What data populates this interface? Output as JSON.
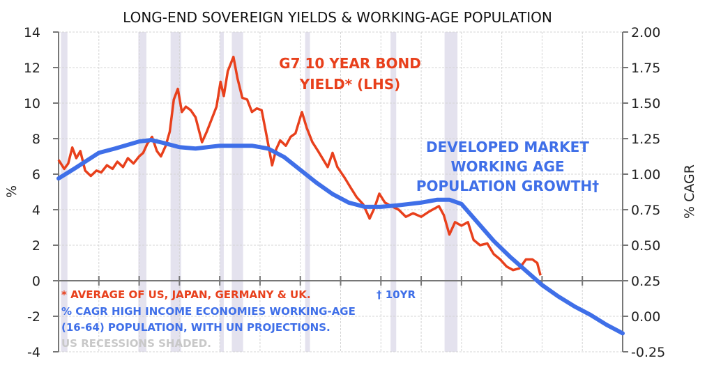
{
  "chart_data": {
    "type": "line",
    "title": "LONG-END SOVEREIGN YIELDS & WORKING-AGE POPULATION",
    "ylabel": "%",
    "y2label": "% CAGR",
    "xlim": [
      1960,
      2030
    ],
    "ylim": [
      -4,
      14
    ],
    "y2lim": [
      -0.25,
      2.0
    ],
    "yticks": [
      "14",
      "12",
      "10",
      "8",
      "6",
      "4",
      "2",
      "0",
      "-2",
      "-4"
    ],
    "y2ticks": [
      "2.00",
      "1.75",
      "1.50",
      "1.25",
      "1.00",
      "0.75",
      "0.50",
      "0.25",
      "0.00",
      "-0.25"
    ],
    "grid": true,
    "colors": {
      "yield": "#e8401c",
      "population": "#3f6fe8",
      "recession": "#e4e2ee",
      "note_gray": "#c8c8c8"
    },
    "recessions": [
      [
        1960.3,
        1961.1
      ],
      [
        1969.9,
        1970.9
      ],
      [
        1973.9,
        1975.2
      ],
      [
        1980.0,
        1980.5
      ],
      [
        1981.5,
        1982.9
      ],
      [
        1990.6,
        1991.2
      ],
      [
        2001.2,
        2001.9
      ],
      [
        2007.9,
        2009.5
      ]
    ],
    "series": [
      {
        "name": "G7 10 YEAR BOND YIELD* (LHS)",
        "axis": "left",
        "x": [
          1960,
          1960.7,
          1961.2,
          1961.7,
          1962.2,
          1962.7,
          1963.3,
          1964,
          1964.7,
          1965.3,
          1966,
          1966.7,
          1967.3,
          1968,
          1968.6,
          1969.3,
          1970,
          1970.5,
          1971,
          1971.6,
          1972.2,
          1972.7,
          1973.3,
          1973.8,
          1974.3,
          1974.8,
          1975.3,
          1975.8,
          1976.4,
          1977,
          1977.8,
          1978.4,
          1979,
          1979.6,
          1980.1,
          1980.5,
          1981,
          1981.7,
          1982.2,
          1982.8,
          1983.4,
          1984,
          1984.6,
          1985.2,
          1985.8,
          1986.5,
          1987,
          1987.5,
          1988.2,
          1988.8,
          1989.4,
          1990.2,
          1990.8,
          1991.5,
          1992.2,
          1993.4,
          1994,
          1994.6,
          1995.5,
          1996.3,
          1997,
          1997.8,
          1998.6,
          1999.2,
          1999.8,
          2000.5,
          2001.3,
          2002.2,
          2003.1,
          2004,
          2005,
          2006,
          2007.2,
          2007.8,
          2008.5,
          2009.2,
          2010,
          2010.8,
          2011.5,
          2012.3,
          2013.2,
          2014,
          2014.8,
          2015.6,
          2016.4,
          2017.2,
          2018,
          2018.8,
          2019.4,
          2019.8
        ],
        "y": [
          6.8,
          6.3,
          6.6,
          7.5,
          6.9,
          7.3,
          6.2,
          5.9,
          6.2,
          6.1,
          6.5,
          6.3,
          6.7,
          6.4,
          6.9,
          6.6,
          7.0,
          7.2,
          7.7,
          8.1,
          7.3,
          7.0,
          7.6,
          8.4,
          10.2,
          10.8,
          9.5,
          9.8,
          9.6,
          9.2,
          7.8,
          8.4,
          9.1,
          9.8,
          11.2,
          10.4,
          11.8,
          12.6,
          11.4,
          10.3,
          10.2,
          9.5,
          9.7,
          9.6,
          8.2,
          6.5,
          7.4,
          7.9,
          7.6,
          8.1,
          8.3,
          9.5,
          8.6,
          7.8,
          7.3,
          6.4,
          7.2,
          6.4,
          5.8,
          5.2,
          4.7,
          4.3,
          3.5,
          4.1,
          4.9,
          4.4,
          4.2,
          4.0,
          3.6,
          3.8,
          3.6,
          3.9,
          4.2,
          3.7,
          2.6,
          3.3,
          3.1,
          3.3,
          2.3,
          2.0,
          2.1,
          1.5,
          1.2,
          0.8,
          0.6,
          0.7,
          1.2,
          1.2,
          1.0,
          0.3
        ]
      },
      {
        "name": "DEVELOPED MARKET WORKING AGE POPULATION GROWTH†",
        "axis": "right",
        "x": [
          1960,
          1962,
          1965,
          1967,
          1970,
          1971.5,
          1973,
          1975,
          1977,
          1980,
          1984,
          1986,
          1988,
          1990,
          1992,
          1994,
          1996,
          1998,
          2000,
          2002,
          2005,
          2007,
          2008.5,
          2010,
          2012,
          2014,
          2016,
          2018,
          2020,
          2022,
          2024,
          2026,
          2028,
          2030
        ],
        "y": [
          0.97,
          1.04,
          1.15,
          1.18,
          1.23,
          1.24,
          1.22,
          1.19,
          1.18,
          1.2,
          1.2,
          1.18,
          1.12,
          1.03,
          0.94,
          0.86,
          0.8,
          0.77,
          0.77,
          0.78,
          0.8,
          0.82,
          0.82,
          0.79,
          0.66,
          0.53,
          0.42,
          0.32,
          0.22,
          0.14,
          0.07,
          0.01,
          -0.06,
          -0.12
        ]
      }
    ],
    "annotations": {
      "yield_label": [
        "G7 10 YEAR BOND",
        "YIELD* (LHS)"
      ],
      "population_label": [
        "DEVELOPED MARKET",
        "WORKING AGE",
        "POPULATION GROWTH†"
      ],
      "note_red": "* AVERAGE OF US, JAPAN, GERMANY & UK.",
      "note_blue_1": "† 10YR",
      "note_blue_2": "% CAGR HIGH INCOME ECONOMIES WORKING-AGE",
      "note_blue_3": "(16-64) POPULATION, WITH UN PROJECTIONS.",
      "note_gray": "US RECESSIONS SHADED."
    }
  }
}
